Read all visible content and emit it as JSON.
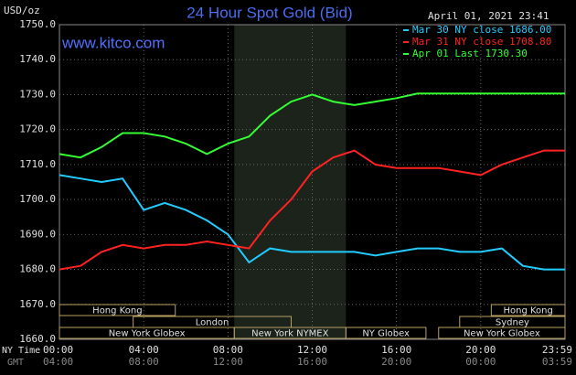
{
  "chart_data": {
    "type": "line",
    "title": "24 Hour Spot Gold (Bid)",
    "unit_label": "USD/oz",
    "timestamp": "April 01, 2021 23:41",
    "watermark": "www.kitco.com",
    "x_label": "NY Time",
    "x2_label": "GMT",
    "x": [
      0,
      1,
      2,
      3,
      4,
      5,
      6,
      7,
      8,
      9,
      10,
      11,
      12,
      13,
      14,
      15,
      16,
      17,
      18,
      19,
      20,
      21,
      22,
      23,
      24
    ],
    "xlim": [
      0,
      24
    ],
    "xticks": [
      {
        "value": 0,
        "label": "00:00"
      },
      {
        "value": 4,
        "label": "04:00"
      },
      {
        "value": 8,
        "label": "08:00"
      },
      {
        "value": 12,
        "label": "12:00"
      },
      {
        "value": 16,
        "label": "16:00"
      },
      {
        "value": 20,
        "label": "20:00"
      },
      {
        "value": 24,
        "label": "23:59"
      }
    ],
    "x2ticks": [
      {
        "value": 0,
        "label": "04:00"
      },
      {
        "value": 4,
        "label": "08:00"
      },
      {
        "value": 8,
        "label": "12:00"
      },
      {
        "value": 12,
        "label": "16:00"
      },
      {
        "value": 16,
        "label": "20:00"
      },
      {
        "value": 20,
        "label": "00:00"
      },
      {
        "value": 24,
        "label": "03:59"
      }
    ],
    "ylim": [
      1660,
      1750
    ],
    "yticks": [
      {
        "value": 1660,
        "label": "1660.0"
      },
      {
        "value": 1670,
        "label": "1670.0"
      },
      {
        "value": 1680,
        "label": "1680.0"
      },
      {
        "value": 1690,
        "label": "1690.0"
      },
      {
        "value": 1700,
        "label": "1700.0"
      },
      {
        "value": 1710,
        "label": "1710.0"
      },
      {
        "value": 1720,
        "label": "1720.0"
      },
      {
        "value": 1730,
        "label": "1730.0"
      },
      {
        "value": 1740,
        "label": "1740.0"
      },
      {
        "value": 1750,
        "label": "1750.0"
      }
    ],
    "grid": true,
    "series": [
      {
        "name": "Mar 30 NY close 1686.00",
        "color": "#22ccff",
        "values": [
          1707,
          1706,
          1705,
          1706,
          1697,
          1699,
          1697,
          1694,
          1690,
          1682,
          1686,
          1685,
          1685,
          1685,
          1685,
          1684,
          1685,
          1686,
          1686,
          1685,
          1685,
          1686,
          1681,
          1680,
          1680
        ]
      },
      {
        "name": "Mar 31 NY close 1708.80",
        "color": "#ff2222",
        "values": [
          1680,
          1681,
          1685,
          1687,
          1686,
          1687,
          1687,
          1688,
          1687,
          1686,
          1694,
          1700,
          1708,
          1712,
          1714,
          1710,
          1709,
          1709,
          1709,
          1708,
          1707,
          1710,
          1712,
          1714,
          1714
        ]
      },
      {
        "name": "Apr 01 Last 1730.30",
        "color": "#33ff33",
        "values": [
          1713,
          1712,
          1715,
          1719,
          1719,
          1718,
          1716,
          1713,
          1716,
          1718,
          1724,
          1728,
          1730,
          1728,
          1727,
          1728,
          1729,
          1730.3,
          1730.3,
          1730.3,
          1730.3,
          1730.3,
          1730.3,
          1730.3,
          1730.3
        ]
      }
    ],
    "sessions": [
      {
        "label": "Hong Kong",
        "start": 0,
        "end": 5.5
      },
      {
        "label": "Hong Kong",
        "start": 20.5,
        "end": 24
      },
      {
        "label": "London",
        "start": 3.5,
        "end": 11
      },
      {
        "label": "Sydney",
        "start": 19,
        "end": 24
      },
      {
        "label": "New York Globex",
        "start": 0,
        "end": 8.3
      },
      {
        "label": "New York NYMEX",
        "start": 8.3,
        "end": 13.6
      },
      {
        "label": "NY Globex",
        "start": 13.6,
        "end": 17.4
      },
      {
        "label": "New York Globex",
        "start": 18,
        "end": 24
      }
    ]
  }
}
